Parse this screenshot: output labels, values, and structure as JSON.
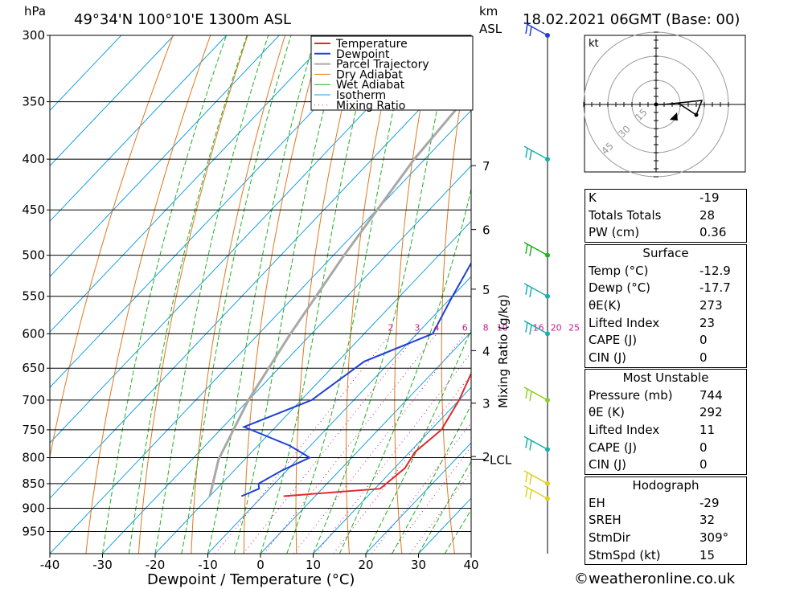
{
  "header": {
    "pressure_unit": "hPa",
    "location": "49°34'N  100°10'E  1300m  ASL",
    "height_unit_line1": "km",
    "height_unit_line2": "ASL",
    "datetime": "18.02.2021  06GMT  (Base: 00)"
  },
  "chart_data": {
    "type": "line",
    "xlabel": "Dewpoint / Temperature (°C)",
    "ylabel": "hPa",
    "mixing_ratio_label": "Mixing Ratio (g/kg)",
    "x_ticks": [
      "-40",
      "-30",
      "-20",
      "-10",
      "0",
      "10",
      "20",
      "30",
      "40"
    ],
    "xlim": [
      -40,
      40
    ],
    "pressure_ticks": [
      "300",
      "350",
      "400",
      "450",
      "500",
      "550",
      "600",
      "650",
      "700",
      "750",
      "800",
      "850",
      "900",
      "950"
    ],
    "ylim": [
      300,
      1000
    ],
    "height_ticks_km": [
      {
        "label": "7",
        "p": 406
      },
      {
        "label": "6",
        "p": 471
      },
      {
        "label": "5",
        "p": 541
      },
      {
        "label": "4",
        "p": 624
      },
      {
        "label": "3",
        "p": 705
      },
      {
        "label": "2",
        "p": 798
      }
    ],
    "lcl_label": "LCL",
    "lcl_p": 803,
    "mixing_ratio_values": [
      "2",
      "3",
      "4",
      "6",
      "8",
      "10",
      "16",
      "20",
      "25"
    ],
    "legend": [
      "Temperature",
      "Dewpoint",
      "Parcel Trajectory",
      "Dry Adiabat",
      "Wet Adiabat",
      "Isotherm",
      "Mixing Ratio"
    ],
    "colors": {
      "temperature": "#e0282e",
      "dewpoint": "#1f3fd8",
      "parcel": "#a8a8a8",
      "dry_adiabat": "#e07820",
      "wet_adiabat": "#20b020",
      "isotherm": "#18a0e0",
      "mixing_ratio": "#d01890"
    },
    "series": [
      {
        "name": "Temperature",
        "points": [
          [
            -12,
            300
          ],
          [
            -7,
            350
          ],
          [
            -3,
            400
          ],
          [
            1,
            450
          ],
          [
            4,
            500
          ],
          [
            5.5,
            550
          ],
          [
            6.5,
            600
          ],
          [
            7,
            650
          ],
          [
            10,
            700
          ],
          [
            12,
            750
          ],
          [
            11,
            790
          ],
          [
            12,
            820
          ],
          [
            11,
            860
          ],
          [
            -6,
            875
          ]
        ]
      },
      {
        "name": "Dewpoint",
        "points": [
          [
            -26,
            300
          ],
          [
            -22,
            350
          ],
          [
            -19,
            400
          ],
          [
            -16,
            450
          ],
          [
            -13,
            500
          ],
          [
            -10,
            550
          ],
          [
            -7,
            600
          ],
          [
            -15,
            640
          ],
          [
            -18,
            700
          ],
          [
            -26,
            745
          ],
          [
            -14,
            778
          ],
          [
            -8,
            800
          ],
          [
            -11,
            825
          ],
          [
            -13,
            850
          ],
          [
            -12,
            860
          ],
          [
            -14,
            875
          ]
        ]
      },
      {
        "name": "Parcel Trajectory",
        "points": [
          [
            -44,
            320
          ],
          [
            -42,
            400
          ],
          [
            -38,
            500
          ],
          [
            -34,
            600
          ],
          [
            -30,
            700
          ],
          [
            -27,
            760
          ],
          [
            -25,
            803
          ],
          [
            -20,
            875
          ]
        ]
      }
    ]
  },
  "wind_barbs": [
    {
      "p": 300,
      "color": "#1f3fd8"
    },
    {
      "p": 400,
      "color": "#18b0b0"
    },
    {
      "p": 500,
      "color": "#20b020"
    },
    {
      "p": 550,
      "color": "#18b0b0"
    },
    {
      "p": 600,
      "color": "#18b0b0"
    },
    {
      "p": 700,
      "color": "#90d020"
    },
    {
      "p": 785,
      "color": "#18b0b0"
    },
    {
      "p": 850,
      "color": "#e0d020"
    },
    {
      "p": 880,
      "color": "#e0d020"
    }
  ],
  "hodograph": {
    "unit": "kt",
    "ring_labels": [
      "15",
      "30",
      "45"
    ]
  },
  "indices_block": {
    "rows": [
      {
        "label": "K",
        "value": "-19"
      },
      {
        "label": "Totals Totals",
        "value": "28"
      },
      {
        "label": "PW (cm)",
        "value": "0.36"
      }
    ]
  },
  "surface_block": {
    "title": "Surface",
    "rows": [
      {
        "label": "Temp (°C)",
        "value": "-12.9"
      },
      {
        "label": "Dewp (°C)",
        "value": "-17.7"
      },
      {
        "label": "θE(K)",
        "value": "273"
      },
      {
        "label": "Lifted Index",
        "value": "23"
      },
      {
        "label": "CAPE (J)",
        "value": "0"
      },
      {
        "label": "CIN (J)",
        "value": "0"
      }
    ]
  },
  "unstable_block": {
    "title": "Most Unstable",
    "rows": [
      {
        "label": "Pressure (mb)",
        "value": "744"
      },
      {
        "label": "θE (K)",
        "value": "292"
      },
      {
        "label": "Lifted Index",
        "value": "11"
      },
      {
        "label": "CAPE (J)",
        "value": "0"
      },
      {
        "label": "CIN (J)",
        "value": "0"
      }
    ]
  },
  "hodo_block": {
    "title": "Hodograph",
    "rows": [
      {
        "label": "EH",
        "value": "-29"
      },
      {
        "label": "SREH",
        "value": "32"
      },
      {
        "label": "StmDir",
        "value": "309°"
      },
      {
        "label": "StmSpd (kt)",
        "value": "15"
      }
    ]
  },
  "footer": {
    "copyright": "©weatheronline.co.uk"
  }
}
